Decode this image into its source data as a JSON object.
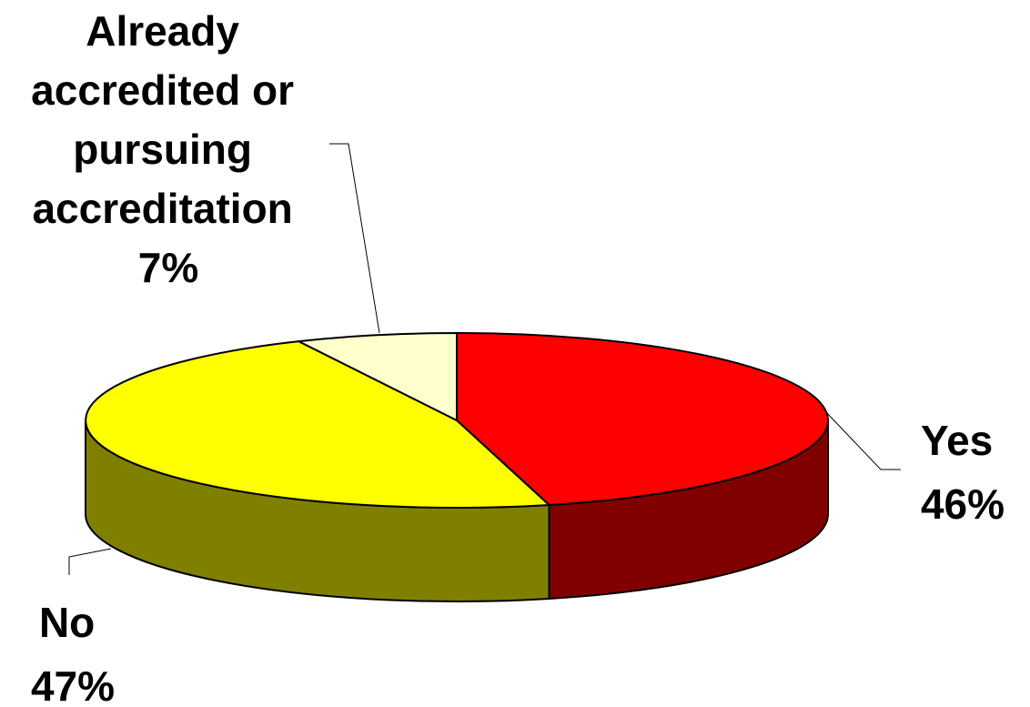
{
  "chart_data": {
    "type": "pie",
    "style": "3d",
    "title": "",
    "categories": [
      "Yes",
      "No",
      "Already accredited or pursuing accreditation"
    ],
    "values": [
      46,
      47,
      7
    ],
    "series": [
      {
        "name": "",
        "values": [
          46,
          47,
          7
        ]
      }
    ],
    "data_labels": [
      {
        "lines": [
          "Yes",
          "46%"
        ]
      },
      {
        "lines": [
          "No",
          "47%"
        ]
      },
      {
        "lines": [
          "Already",
          "accredited or",
          "pursuing",
          "accreditation",
          "7%"
        ]
      }
    ],
    "colors": {
      "slices": [
        "#ff0000",
        "#ffff00",
        "#ffffcc"
      ],
      "sides": [
        "#800000",
        "#808000",
        "#e6e6b8"
      ],
      "outline": "#000000"
    },
    "legend": "none"
  }
}
